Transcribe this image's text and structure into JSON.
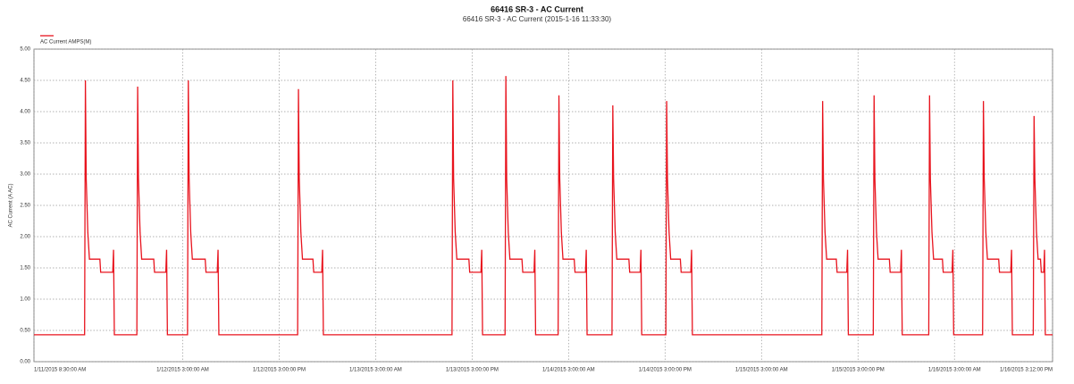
{
  "chart_data": {
    "type": "line",
    "title": "66416 SR-3 - AC Current",
    "subtitle": "66416 SR-3 - AC Current (2015-1-16 11:33:30)",
    "y_label": "AC Current (A AC)",
    "grid": true,
    "ylim": [
      0,
      5
    ],
    "yticks": [
      {
        "value": 0,
        "label": "0.00"
      },
      {
        "value": 0.5,
        "label": "0.50"
      },
      {
        "value": 1,
        "label": "1.00"
      },
      {
        "value": 1.5,
        "label": "1.50"
      },
      {
        "value": 2,
        "label": "2.00"
      },
      {
        "value": 2.5,
        "label": "2.50"
      },
      {
        "value": 3,
        "label": "3.00"
      },
      {
        "value": 3.5,
        "label": "3.50"
      },
      {
        "value": 4,
        "label": "4.00"
      },
      {
        "value": 4.5,
        "label": "4.50"
      },
      {
        "value": 5,
        "label": "5.00"
      }
    ],
    "xlim": [
      0,
      126.7
    ],
    "xticks": [
      {
        "value": 0,
        "label": "1/11/2015 8:30:00 AM"
      },
      {
        "value": 18.5,
        "label": "1/12/2015 3:00:00 AM"
      },
      {
        "value": 30.5,
        "label": "1/12/2015 3:00:00 PM"
      },
      {
        "value": 42.5,
        "label": "1/13/2015 3:00:00 AM"
      },
      {
        "value": 54.5,
        "label": "1/13/2015 3:00:00 PM"
      },
      {
        "value": 66.5,
        "label": "1/14/2015 3:00:00 AM"
      },
      {
        "value": 78.5,
        "label": "1/14/2015 3:00:00 PM"
      },
      {
        "value": 90.5,
        "label": "1/15/2015 3:00:00 AM"
      },
      {
        "value": 102.5,
        "label": "1/15/2015 3:00:00 PM"
      },
      {
        "value": 114.5,
        "label": "1/16/2015 3:00:00 AM"
      },
      {
        "value": 126.7,
        "label": "1/16/2015 3:12:00 PM"
      }
    ],
    "x": [
      0,
      6.3,
      6.4,
      6.5,
      6.7,
      6.9,
      8.2,
      8.3,
      9.8,
      9.9,
      10.0,
      12.8,
      12.9,
      13.0,
      13.2,
      13.4,
      14.9,
      15.0,
      16.4,
      16.5,
      16.6,
      19.1,
      19.2,
      19.3,
      19.5,
      19.7,
      21.3,
      21.4,
      22.8,
      22.9,
      23.0,
      32.8,
      32.9,
      33.0,
      33.2,
      33.4,
      34.7,
      34.8,
      35.8,
      35.9,
      36.0,
      52.0,
      52.1,
      52.2,
      52.4,
      52.6,
      54.1,
      54.2,
      55.6,
      55.7,
      55.8,
      58.6,
      58.7,
      58.8,
      59.0,
      59.2,
      60.7,
      60.8,
      62.2,
      62.3,
      62.4,
      65.2,
      65.3,
      65.4,
      65.6,
      65.8,
      67.2,
      67.3,
      68.6,
      68.7,
      68.8,
      71.9,
      72.0,
      72.1,
      72.3,
      72.5,
      74.0,
      74.1,
      75.4,
      75.5,
      75.6,
      78.6,
      78.7,
      78.8,
      79.0,
      79.2,
      80.4,
      80.5,
      81.7,
      81.8,
      81.9,
      98.0,
      98.1,
      98.2,
      98.4,
      98.6,
      99.8,
      99.9,
      101.1,
      101.2,
      101.3,
      104.4,
      104.5,
      104.6,
      104.8,
      105.0,
      106.4,
      106.5,
      107.8,
      107.9,
      108.0,
      111.3,
      111.4,
      111.5,
      111.7,
      111.9,
      113.0,
      113.1,
      114.2,
      114.3,
      114.4,
      118.0,
      118.1,
      118.2,
      118.4,
      118.6,
      120.0,
      120.1,
      121.5,
      121.6,
      121.7,
      124.3,
      124.4,
      124.5,
      124.7,
      124.9,
      125.2,
      125.3,
      125.6,
      125.7,
      125.8,
      126.7
    ],
    "series": [
      {
        "name": "AC Current AMPS(M)",
        "color": "#e8141e",
        "values": [
          0.43,
          0.43,
          4.5,
          2.93,
          2.07,
          1.64,
          1.64,
          1.43,
          1.43,
          1.79,
          0.43,
          0.43,
          4.4,
          2.93,
          2.07,
          1.64,
          1.64,
          1.43,
          1.43,
          1.79,
          0.43,
          0.43,
          4.5,
          2.93,
          2.07,
          1.64,
          1.64,
          1.43,
          1.43,
          1.79,
          0.43,
          0.43,
          4.36,
          2.93,
          2.07,
          1.64,
          1.64,
          1.43,
          1.43,
          1.79,
          0.43,
          0.43,
          4.5,
          2.93,
          2.07,
          1.64,
          1.64,
          1.43,
          1.43,
          1.79,
          0.43,
          0.43,
          4.57,
          2.93,
          2.07,
          1.64,
          1.64,
          1.43,
          1.43,
          1.79,
          0.43,
          0.43,
          4.26,
          2.93,
          2.07,
          1.64,
          1.64,
          1.43,
          1.43,
          1.79,
          0.43,
          0.43,
          4.1,
          2.93,
          2.07,
          1.64,
          1.64,
          1.43,
          1.43,
          1.79,
          0.43,
          0.43,
          4.17,
          2.93,
          2.07,
          1.64,
          1.64,
          1.43,
          1.43,
          1.79,
          0.43,
          0.43,
          4.17,
          2.93,
          2.07,
          1.64,
          1.64,
          1.43,
          1.43,
          1.79,
          0.43,
          0.43,
          4.26,
          2.93,
          2.07,
          1.64,
          1.64,
          1.43,
          1.43,
          1.79,
          0.43,
          0.43,
          4.26,
          2.93,
          2.07,
          1.64,
          1.64,
          1.43,
          1.43,
          1.79,
          0.43,
          0.43,
          4.17,
          2.93,
          2.07,
          1.64,
          1.64,
          1.43,
          1.43,
          1.79,
          0.43,
          0.43,
          3.93,
          2.93,
          2.07,
          1.64,
          1.64,
          1.43,
          1.43,
          1.79,
          0.43,
          0.43
        ]
      }
    ]
  }
}
